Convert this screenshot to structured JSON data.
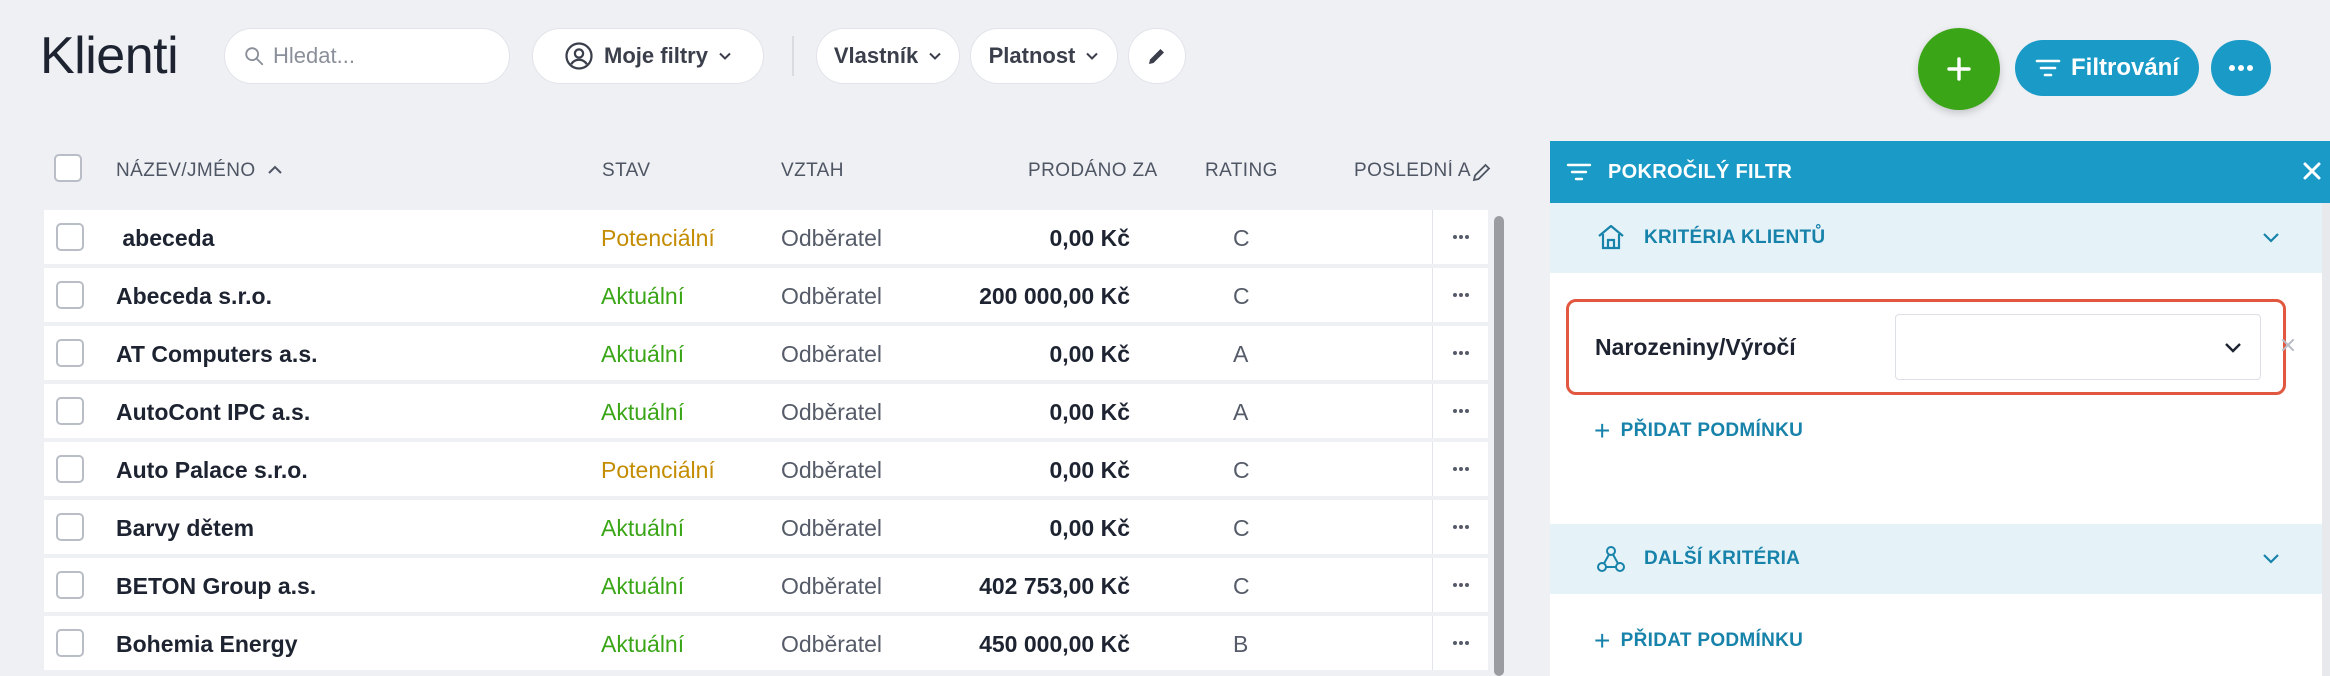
{
  "header": {
    "title": "Klienti",
    "search_placeholder": "Hledat...",
    "my_filters_label": "Moje filtry",
    "owner_filter_label": "Vlastník",
    "validity_filter_label": "Platnost",
    "filter_button_label": "Filtrování"
  },
  "colors": {
    "accent": "#1a9bc7",
    "add_button": "#3aa617",
    "status_potential": "#c48c00",
    "status_current": "#3aa617",
    "highlight_border": "#e2573f"
  },
  "table": {
    "columns": {
      "name": "NÁZEV/JMÉNO",
      "status": "STAV",
      "relation": "VZTAH",
      "sold_for": "PRODÁNO ZA",
      "rating": "RATING",
      "last": "POSLEDNÍ A"
    },
    "rows": [
      {
        "name": " abeceda",
        "status": "Potenciální",
        "status_type": "potential",
        "relation": "Odběratel",
        "sold_for": "0,00 Kč",
        "rating": "C"
      },
      {
        "name": "Abeceda s.r.o.",
        "status": "Aktuální",
        "status_type": "current",
        "relation": "Odběratel",
        "sold_for": "200 000,00 Kč",
        "rating": "C"
      },
      {
        "name": "AT Computers a.s.",
        "status": "Aktuální",
        "status_type": "current",
        "relation": "Odběratel",
        "sold_for": "0,00 Kč",
        "rating": "A"
      },
      {
        "name": "AutoCont IPC a.s.",
        "status": "Aktuální",
        "status_type": "current",
        "relation": "Odběratel",
        "sold_for": "0,00 Kč",
        "rating": "A"
      },
      {
        "name": "Auto Palace s.r.o.",
        "status": "Potenciální",
        "status_type": "potential",
        "relation": "Odběratel",
        "sold_for": "0,00 Kč",
        "rating": "C"
      },
      {
        "name": "Barvy dětem",
        "status": "Aktuální",
        "status_type": "current",
        "relation": "Odběratel",
        "sold_for": "0,00 Kč",
        "rating": "C"
      },
      {
        "name": "BETON Group a.s.",
        "status": "Aktuální",
        "status_type": "current",
        "relation": "Odběratel",
        "sold_for": "402 753,00 Kč",
        "rating": "C"
      },
      {
        "name": "Bohemia Energy",
        "status": "Aktuální",
        "status_type": "current",
        "relation": "Odběratel",
        "sold_for": "450 000,00 Kč",
        "rating": "B"
      }
    ]
  },
  "filter_panel": {
    "title": "POKROČILÝ FILTR",
    "client_criteria_label": "KRITÉRIA KLIENTŮ",
    "condition_label": "Narozeniny/Výročí",
    "condition_value": "",
    "add_condition_label": "PŘIDAT PODMÍNKU",
    "more_criteria_label": "DALŠÍ KRITÉRIA",
    "add_condition_label_2": "PŘIDAT PODMÍNKU"
  }
}
